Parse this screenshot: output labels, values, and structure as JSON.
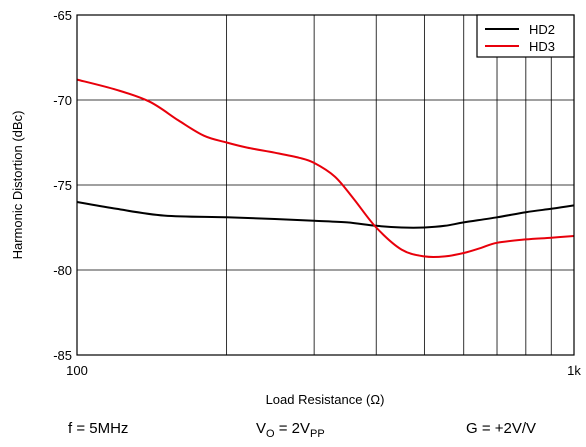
{
  "chart_data": {
    "type": "line",
    "title": "",
    "xlabel": "Load Resistance (Ω)",
    "ylabel": "Harmonic Distortion (dBc)",
    "xscale": "log",
    "xlim": [
      100,
      1000
    ],
    "ylim": [
      -85,
      -65
    ],
    "x_ticks": [
      "100",
      "1k"
    ],
    "y_ticks": [
      "-65",
      "-70",
      "-75",
      "-80",
      "-85"
    ],
    "grid": true,
    "legend": "top-right",
    "series": [
      {
        "name": "HD2",
        "color": "#000000",
        "x": [
          100,
          120,
          150,
          200,
          250,
          300,
          350,
          400,
          450,
          500,
          550,
          600,
          700,
          800,
          900,
          1000
        ],
        "y": [
          -76.0,
          -76.4,
          -76.8,
          -76.9,
          -77.0,
          -77.1,
          -77.2,
          -77.4,
          -77.5,
          -77.5,
          -77.4,
          -77.2,
          -76.9,
          -76.6,
          -76.4,
          -76.2
        ]
      },
      {
        "name": "HD3",
        "color": "#e8000b",
        "x": [
          100,
          120,
          140,
          160,
          180,
          200,
          220,
          250,
          280,
          300,
          330,
          360,
          400,
          450,
          500,
          550,
          600,
          650,
          700,
          800,
          900,
          1000
        ],
        "y": [
          -68.8,
          -69.4,
          -70.1,
          -71.2,
          -72.1,
          -72.5,
          -72.8,
          -73.1,
          -73.4,
          -73.7,
          -74.5,
          -75.8,
          -77.5,
          -78.8,
          -79.2,
          -79.2,
          -79.0,
          -78.7,
          -78.4,
          -78.2,
          -78.1,
          -78.0
        ]
      }
    ]
  },
  "conditions": {
    "freq": "f = 5MHz",
    "vo_prefix": "V",
    "vo_sub": "O",
    "vo_mid": " = 2V",
    "vo_sub2": "PP",
    "gain": "G = +2V/V"
  }
}
